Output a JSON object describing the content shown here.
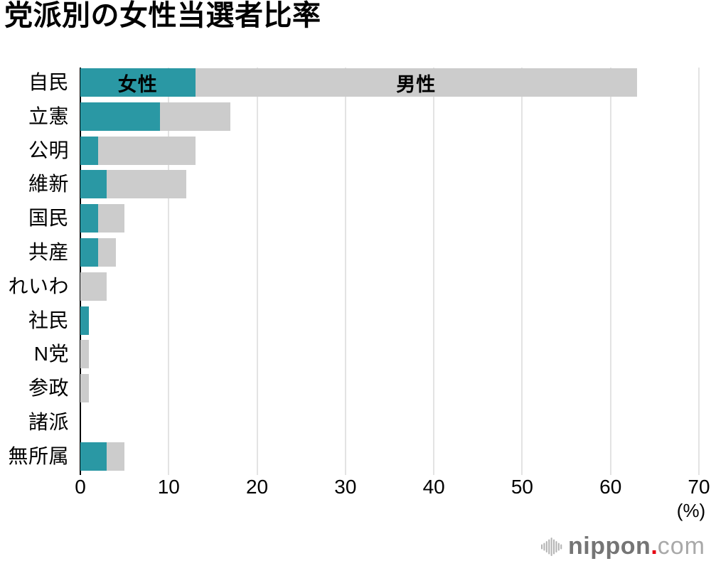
{
  "chart_data": {
    "type": "bar",
    "orientation": "horizontal",
    "stacked": true,
    "title": "党派別の女性当選者比率",
    "categories": [
      "自民",
      "立憲",
      "公明",
      "維新",
      "国民",
      "共産",
      "れいわ",
      "社民",
      "N党",
      "参政",
      "諸派",
      "無所属"
    ],
    "series": [
      {
        "name": "女性",
        "color": "#2a98a4",
        "values": [
          13,
          9,
          2,
          3,
          2,
          2,
          0,
          1,
          0,
          0,
          0,
          3
        ]
      },
      {
        "name": "男性",
        "color": "#cccccc",
        "values": [
          50,
          8,
          11,
          9,
          3,
          2,
          3,
          0,
          1,
          1,
          0,
          2
        ]
      }
    ],
    "xlim": [
      0,
      70
    ],
    "xticks": [
      0,
      10,
      20,
      30,
      40,
      50,
      60,
      70
    ],
    "x_unit_label": "(%)",
    "grid": true,
    "legend_position": "inside-first-bar"
  },
  "colors": {
    "female": "#2a98a4",
    "male": "#cccccc",
    "gridline": "#e3e3e3",
    "axis": "#000000"
  },
  "branding": {
    "icon": "audio-waveform-icon",
    "name_bold": "nippon",
    "dot": ".",
    "name_light": "com",
    "icon_color": "#b5b5b5",
    "name_bold_color": "#757575",
    "dot_color": "#e60012",
    "name_light_color": "#a9a9a9"
  }
}
